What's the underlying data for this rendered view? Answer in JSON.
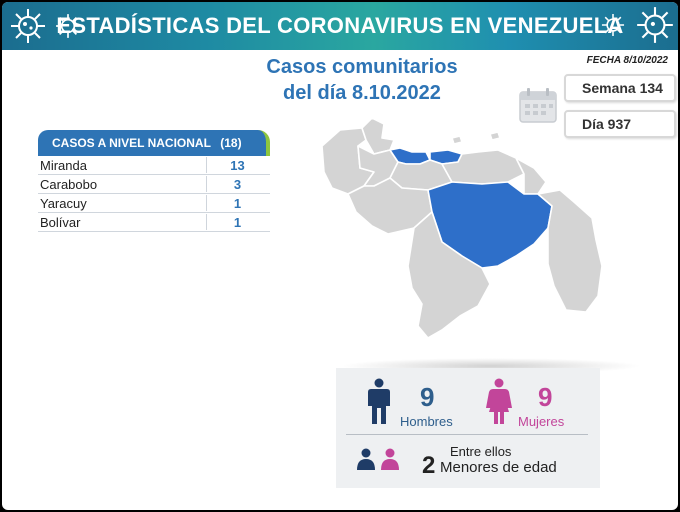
{
  "header": {
    "title": "ESTADÍSTICAS DEL CORONAVIRUS EN VENEZUELA"
  },
  "subtitle": {
    "line1": "Casos comunitarios",
    "line2": "del día 8.10.2022"
  },
  "fecha": "FECHA 8/10/2022",
  "badges": {
    "semana": "Semana 134",
    "dia": "Día 937"
  },
  "table": {
    "title": "CASOS A NIVEL NACIONAL",
    "total": "(18)",
    "rows": [
      {
        "state": "Miranda",
        "cases": "13"
      },
      {
        "state": "Carabobo",
        "cases": "3"
      },
      {
        "state": "Yaracuy",
        "cases": "1"
      },
      {
        "state": "Bolívar",
        "cases": "1"
      }
    ]
  },
  "summary": {
    "men_count": "9",
    "men_label": "Hombres",
    "women_count": "9",
    "women_label": "Mujeres",
    "among_label": "Entre ellos",
    "minors_count": "2",
    "minors_label": "Menores de edad"
  },
  "colors": {
    "brand_blue": "#2e74b5",
    "highlight_state": "#2e6fc9",
    "map_grey": "#d4d4d4",
    "men_color": "#1f3c67",
    "women_color": "#c2459a",
    "accent_green": "#8dc63f"
  },
  "icons": [
    "virus-icon",
    "calendar-icon",
    "man-icon",
    "woman-icon",
    "children-icon"
  ]
}
